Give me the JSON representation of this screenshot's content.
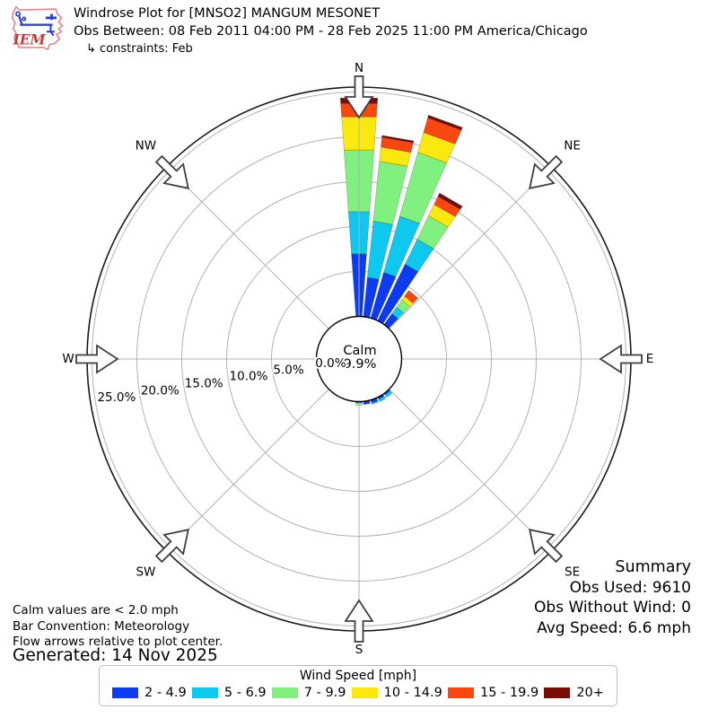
{
  "header": {
    "title": "Windrose Plot for [MNSO2] MANGUM MESONET",
    "subtitle": "Obs Between: 08 Feb 2011 04:00 PM - 28 Feb 2025 11:00 PM America/Chicago",
    "constraints": "↳ constraints: Feb"
  },
  "logo": {
    "text": "IEM"
  },
  "notes": [
    "Calm values are < 2.0 mph",
    "Bar Convention: Meteorology",
    "Flow arrows relative to plot center."
  ],
  "generated": "Generated: 14 Nov 2025",
  "summary": {
    "title": "Summary",
    "lines": [
      "Obs Used: 9610",
      "Obs Without Wind: 0",
      "Avg Speed: 6.6 mph"
    ]
  },
  "legend": {
    "title": "Wind Speed [mph]"
  },
  "chart_data": {
    "type": "windrose",
    "units": "mph",
    "calm": {
      "label": "Calm",
      "value_label": "9.9%",
      "value_pct": 9.9
    },
    "ring_step_pct": 5,
    "rings_pct": [
      0,
      5,
      10,
      15,
      20,
      25
    ],
    "ring_labels": [
      "0.0%",
      "5.0%",
      "10.0%",
      "15.0%",
      "20.0%",
      "25.0%"
    ],
    "compass_labels": [
      "N",
      "NE",
      "E",
      "SE",
      "S",
      "SW",
      "W",
      "NW"
    ],
    "speed_bins": [
      {
        "label": "2 - 4.9",
        "color": "#0d3cf0"
      },
      {
        "label": "5 - 6.9",
        "color": "#0fc8f0"
      },
      {
        "label": "7 - 9.9",
        "color": "#80f07e"
      },
      {
        "label": "10 - 14.9",
        "color": "#f9e90e"
      },
      {
        "label": "15 - 19.9",
        "color": "#f9480f"
      },
      {
        "label": "20+",
        "color": "#7a0c08"
      }
    ],
    "directions": [
      {
        "angle_deg": 0,
        "pct_by_bin": [
          7.0,
          4.7,
          6.9,
          3.7,
          1.5,
          0.6
        ]
      },
      {
        "angle_deg": 10,
        "pct_by_bin": [
          4.4,
          6.3,
          6.7,
          1.6,
          1.1,
          0.2
        ]
      },
      {
        "angle_deg": 20,
        "pct_by_bin": [
          5.3,
          6.5,
          7.4,
          2.3,
          1.7,
          0.3
        ]
      },
      {
        "angle_deg": 30,
        "pct_by_bin": [
          7.0,
          3.1,
          2.9,
          1.4,
          1.0,
          0.4
        ]
      },
      {
        "angle_deg": 40,
        "pct_by_bin": [
          1.5,
          0.9,
          1.0,
          0.5,
          0.8,
          0.0
        ]
      },
      {
        "angle_deg": 140,
        "pct_by_bin": [
          0.2,
          0.35,
          0,
          0,
          0,
          0
        ]
      },
      {
        "angle_deg": 150,
        "pct_by_bin": [
          0.25,
          0.3,
          0,
          0,
          0,
          0
        ]
      },
      {
        "angle_deg": 160,
        "pct_by_bin": [
          0.35,
          0.15,
          0,
          0,
          0,
          0
        ]
      },
      {
        "angle_deg": 170,
        "pct_by_bin": [
          0.35,
          0,
          0,
          0,
          0,
          0
        ]
      },
      {
        "angle_deg": 180,
        "pct_by_bin": [
          0.15,
          0,
          0.25,
          0,
          0,
          0
        ]
      }
    ]
  }
}
